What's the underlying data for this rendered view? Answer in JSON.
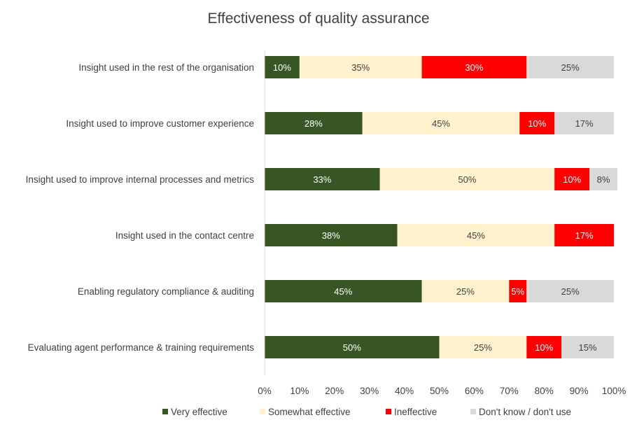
{
  "chart_data": {
    "type": "bar",
    "orientation": "horizontal",
    "stacked": true,
    "title": "Effectiveness of quality assurance",
    "categories": [
      "Insight used in the rest of the organisation",
      "Insight used to improve customer experience",
      "Insight used to improve internal processes and metrics",
      "Insight used in the contact centre",
      "Enabling regulatory compliance & auditing",
      "Evaluating agent performance & training requirements"
    ],
    "series": [
      {
        "name": "Very effective",
        "color": "#375623",
        "label_color": "#ffffff",
        "values": [
          10,
          28,
          33,
          38,
          45,
          50
        ]
      },
      {
        "name": "Somewhat effective",
        "color": "#fff2cc",
        "label_color": "#404040",
        "values": [
          35,
          45,
          50,
          45,
          25,
          25
        ]
      },
      {
        "name": "Ineffective",
        "color": "#ff0000",
        "label_color": "#ffffff",
        "values": [
          30,
          10,
          10,
          17,
          5,
          10
        ]
      },
      {
        "name": "Don't know / don't use",
        "color": "#d9d9d9",
        "label_color": "#404040",
        "values": [
          25,
          17,
          8,
          0,
          25,
          15
        ]
      }
    ],
    "xlim": [
      0,
      100
    ],
    "x_ticks": [
      "0%",
      "10%",
      "20%",
      "30%",
      "40%",
      "50%",
      "60%",
      "70%",
      "80%",
      "90%",
      "100%"
    ],
    "value_suffix": "%",
    "legend_position": "bottom",
    "grid": false
  }
}
